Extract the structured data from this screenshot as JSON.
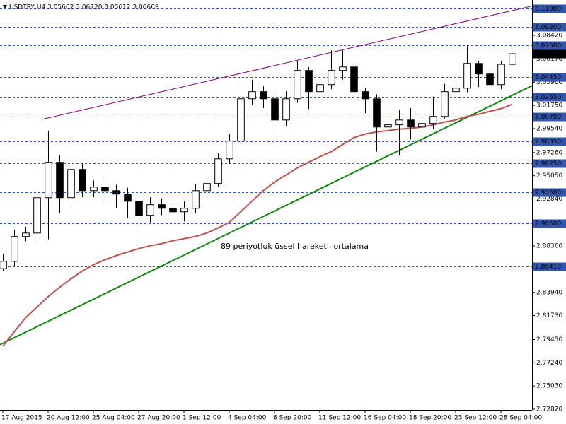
{
  "chart_data": {
    "type": "candlestick",
    "title": "USDTRY,H4  3.05662 3.06720 3.05612 3.06669",
    "annotation": "89 periyotluk üssel hareketli ortalama",
    "xlim": [
      -0.25,
      46.75
    ],
    "ylim": [
      2.7275,
      3.1179
    ],
    "xticks": [
      {
        "value": 0,
        "label": "17 Aug 2015"
      },
      {
        "value": 4,
        "label": "20 Aug 12:00"
      },
      {
        "value": 8,
        "label": "25 Aug 04:00"
      },
      {
        "value": 12,
        "label": "27 Aug 20:00"
      },
      {
        "value": 16,
        "label": "1 Sep 12:00"
      },
      {
        "value": 20,
        "label": "4 Sep 04:00"
      },
      {
        "value": 24,
        "label": "8 Sep 20:00"
      },
      {
        "value": 28,
        "label": "11 Sep 12:00"
      },
      {
        "value": 32,
        "label": "16 Sep 04:00"
      },
      {
        "value": 36,
        "label": "18 Sep 20:00"
      },
      {
        "value": 40,
        "label": "23 Sep 12:00"
      },
      {
        "value": 44,
        "label": "28 Sep 04:00"
      }
    ],
    "yticks": [
      {
        "value": 3.0842,
        "label": "3.08420"
      },
      {
        "value": 3.0617,
        "label": "3.06170"
      },
      {
        "value": 3.0396,
        "label": "3.03960"
      },
      {
        "value": 3.0175,
        "label": "3.01750"
      },
      {
        "value": 2.9954,
        "label": "2.99540"
      },
      {
        "value": 2.9726,
        "label": "2.97260"
      },
      {
        "value": 2.9505,
        "label": "2.95050"
      },
      {
        "value": 2.9284,
        "label": "2.92840"
      },
      {
        "value": 2.8836,
        "label": "2.88360"
      },
      {
        "value": 2.8394,
        "label": "2.83940"
      },
      {
        "value": 2.8173,
        "label": "2.81730"
      },
      {
        "value": 2.7945,
        "label": "2.79450"
      },
      {
        "value": 2.7724,
        "label": "2.77240"
      },
      {
        "value": 2.7503,
        "label": "2.75030"
      },
      {
        "value": 2.7282,
        "label": "2.72820"
      }
    ],
    "levels": [
      {
        "value": 3.11,
        "label": "3.11000"
      },
      {
        "value": 3.092,
        "label": "3.09200"
      },
      {
        "value": 3.075,
        "label": "3.07500"
      },
      {
        "value": 3.0445,
        "label": "3.04450"
      },
      {
        "value": 3.0255,
        "label": "3.02550"
      },
      {
        "value": 3.007,
        "label": "3.00700"
      },
      {
        "value": 2.9835,
        "label": "2.98350"
      },
      {
        "value": 2.9625,
        "label": "2.96250"
      },
      {
        "value": 2.935,
        "label": "2.93500"
      },
      {
        "value": 2.905,
        "label": "2.90500"
      },
      {
        "value": 2.86419,
        "label": "2.86419"
      }
    ],
    "level_color": "#3355aa",
    "current_price": {
      "value": 3.06669,
      "label": "3.06669"
    },
    "open": [
      2.862,
      2.869,
      2.8926,
      2.8959,
      2.9296,
      2.9633,
      2.9296,
      2.9565,
      2.9363,
      2.9397,
      2.9363,
      2.933,
      2.9262,
      2.9128,
      2.9229,
      2.9195,
      2.9161,
      2.9195,
      2.9363,
      2.9431,
      2.9666,
      2.9835,
      3.0238,
      3.0306,
      3.0238,
      3.0036,
      3.0238,
      3.0508,
      3.0306,
      3.0373,
      3.0508,
      3.0541,
      3.0306,
      3.0238,
      2.9969,
      2.999,
      3.0036,
      2.9969,
      3.0003,
      3.007,
      3.0306,
      3.0339,
      3.0575,
      3.0474,
      3.0373,
      3.05662
    ],
    "high": [
      2.876,
      2.899,
      2.902,
      2.94,
      2.9935,
      2.97,
      2.985,
      2.962,
      2.946,
      2.947,
      2.942,
      2.939,
      2.929,
      2.93,
      2.929,
      2.925,
      2.926,
      2.943,
      2.95,
      2.972,
      2.99,
      3.045,
      3.042,
      3.036,
      3.027,
      3.031,
      3.06,
      3.054,
      3.046,
      3.07,
      3.07,
      3.058,
      3.034,
      3.028,
      3.012,
      3.013,
      3.015,
      3.008,
      3.026,
      3.038,
      3.042,
      3.075,
      3.06,
      3.05,
      3.06,
      3.0672
    ],
    "low": [
      2.86,
      2.864,
      2.888,
      2.89,
      2.89,
      2.915,
      2.923,
      2.93,
      2.93,
      2.929,
      2.92,
      2.91,
      2.9,
      2.906,
      2.913,
      2.908,
      2.907,
      2.915,
      2.93,
      2.94,
      2.962,
      2.98,
      3.018,
      3.015,
      2.988,
      2.998,
      3.02,
      3.014,
      3.025,
      3.033,
      3.042,
      3.025,
      3.01,
      2.9734,
      2.99,
      2.97,
      2.985,
      2.99,
      2.995,
      3.005,
      3.02,
      3.03,
      3.035,
      3.025,
      3.033,
      3.05612
    ],
    "close": [
      2.869,
      2.8926,
      2.8959,
      2.9296,
      2.9633,
      2.9296,
      2.9565,
      2.9363,
      2.9397,
      2.9363,
      2.933,
      2.9262,
      2.9128,
      2.9229,
      2.9195,
      2.9161,
      2.9195,
      2.9363,
      2.9431,
      2.9666,
      2.9835,
      3.0238,
      3.0306,
      3.0238,
      3.0036,
      3.0238,
      3.0508,
      3.0306,
      3.0373,
      3.0508,
      3.0541,
      3.0306,
      3.0238,
      2.9969,
      2.999,
      3.0036,
      2.9969,
      3.0003,
      3.007,
      3.0306,
      3.0339,
      3.0575,
      3.0474,
      3.0373,
      3.05662,
      3.06669
    ],
    "ema": {
      "color": "#c0504d",
      "values": [
        2.7882,
        2.8017,
        2.8152,
        2.8253,
        2.8354,
        2.8441,
        2.8522,
        2.8596,
        2.8657,
        2.8704,
        2.8744,
        2.8778,
        2.8811,
        2.8838,
        2.8858,
        2.8885,
        2.8906,
        2.8926,
        2.8959,
        2.9007,
        2.906,
        2.9161,
        2.9262,
        2.9363,
        2.9444,
        2.9511,
        2.9579,
        2.9633,
        2.9686,
        2.9734,
        2.9801,
        2.9868,
        2.9902,
        2.9922,
        2.9935,
        2.9949,
        2.9956,
        2.9969,
        2.9989,
        3.0016,
        3.0036,
        3.007,
        3.009,
        3.0117,
        3.0144,
        3.0185
      ]
    },
    "trendlines": [
      {
        "color": "#800080",
        "x": [
          3.5,
          46.75
        ],
        "values": [
          3.0043,
          3.1122
        ]
      },
      {
        "color": "#118811",
        "x": [
          -0.25,
          46.75
        ],
        "values": [
          2.7896,
          3.0363
        ]
      }
    ]
  }
}
